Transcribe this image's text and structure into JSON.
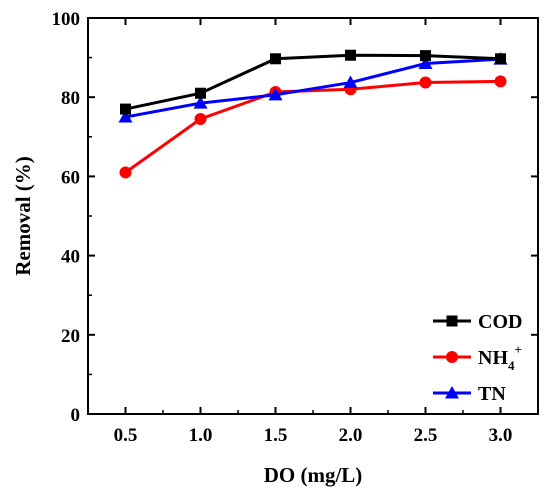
{
  "chart_data": {
    "type": "line",
    "title": "",
    "xlabel": "DO (mg/L)",
    "ylabel": "Removal (%)",
    "x": [
      0.5,
      1.0,
      1.5,
      2.0,
      2.5,
      3.0
    ],
    "x_tick_labels": [
      "0.5",
      "1.0",
      "1.5",
      "2.0",
      "2.5",
      "3.0"
    ],
    "xlim": [
      0.25,
      3.25
    ],
    "ylim": [
      0,
      100
    ],
    "y_ticks": [
      0,
      20,
      40,
      60,
      80,
      100
    ],
    "grid": false,
    "legend_position": "bottom-right",
    "series": [
      {
        "name": "COD",
        "name_main": "COD",
        "name_sub": "",
        "name_sup": "",
        "color": "#000000",
        "marker": "square",
        "values": [
          77.0,
          81.0,
          89.7,
          90.6,
          90.5,
          89.7
        ]
      },
      {
        "name": "NH4+",
        "name_main": "NH",
        "name_sub": "4",
        "name_sup": "+",
        "color": "#ff0000",
        "marker": "circle",
        "values": [
          61.0,
          74.5,
          81.3,
          82.0,
          83.7,
          84.0
        ]
      },
      {
        "name": "TN",
        "name_main": "TN",
        "name_sub": "",
        "name_sup": "",
        "color": "#0000ff",
        "marker": "triangle",
        "values": [
          75.0,
          78.5,
          80.6,
          83.7,
          88.5,
          89.6
        ]
      }
    ]
  }
}
